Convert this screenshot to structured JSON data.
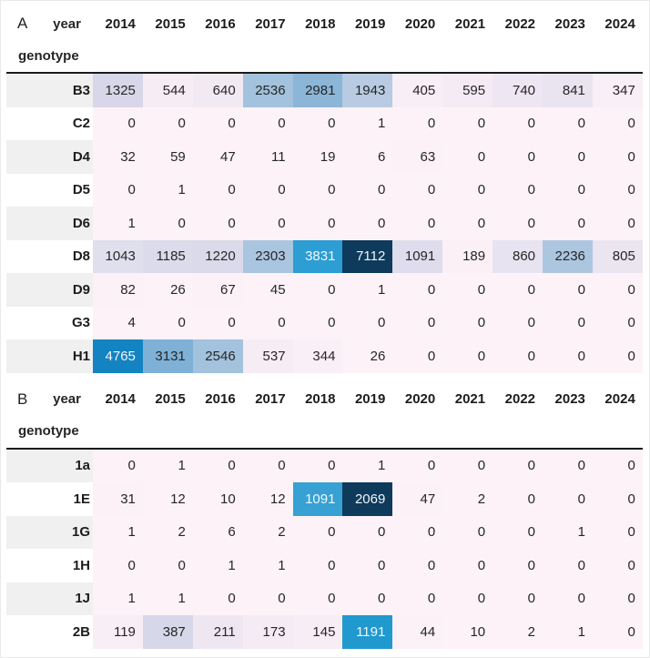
{
  "chart_data": [
    {
      "type": "heatmap",
      "panel_label": "A",
      "columns_name": "year",
      "index_name": "genotype",
      "columns": [
        "2014",
        "2015",
        "2016",
        "2017",
        "2018",
        "2019",
        "2020",
        "2021",
        "2022",
        "2023",
        "2024"
      ],
      "rows": [
        "B3",
        "C2",
        "D4",
        "D5",
        "D6",
        "D8",
        "D9",
        "G3",
        "H1"
      ],
      "values": [
        [
          1325,
          544,
          640,
          2536,
          2981,
          1943,
          405,
          595,
          740,
          841,
          347
        ],
        [
          0,
          0,
          0,
          0,
          0,
          1,
          0,
          0,
          0,
          0,
          0
        ],
        [
          32,
          59,
          47,
          11,
          19,
          6,
          63,
          0,
          0,
          0,
          0
        ],
        [
          0,
          1,
          0,
          0,
          0,
          0,
          0,
          0,
          0,
          0,
          0
        ],
        [
          1,
          0,
          0,
          0,
          0,
          0,
          0,
          0,
          0,
          0,
          0
        ],
        [
          1043,
          1185,
          1220,
          2303,
          3831,
          7112,
          1091,
          189,
          860,
          2236,
          805
        ],
        [
          82,
          26,
          67,
          45,
          0,
          1,
          0,
          0,
          0,
          0,
          0
        ],
        [
          4,
          0,
          0,
          0,
          0,
          0,
          0,
          0,
          0,
          0,
          0
        ],
        [
          4765,
          3131,
          2546,
          537,
          344,
          26,
          0,
          0,
          0,
          0,
          0
        ]
      ],
      "vmin": 0,
      "vmax": 7112,
      "legend": "none",
      "gridlines": false
    },
    {
      "type": "heatmap",
      "panel_label": "B",
      "columns_name": "year",
      "index_name": "genotype",
      "columns": [
        "2014",
        "2015",
        "2016",
        "2017",
        "2018",
        "2019",
        "2020",
        "2021",
        "2022",
        "2023",
        "2024"
      ],
      "rows": [
        "1a",
        "1E",
        "1G",
        "1H",
        "1J",
        "2B"
      ],
      "values": [
        [
          0,
          1,
          0,
          0,
          0,
          1,
          0,
          0,
          0,
          0,
          0
        ],
        [
          31,
          12,
          10,
          12,
          1091,
          2069,
          47,
          2,
          0,
          0,
          0
        ],
        [
          1,
          2,
          6,
          2,
          0,
          0,
          0,
          0,
          0,
          1,
          0
        ],
        [
          0,
          0,
          1,
          1,
          0,
          0,
          0,
          0,
          0,
          0,
          0
        ],
        [
          1,
          1,
          0,
          0,
          0,
          0,
          0,
          0,
          0,
          0,
          0
        ],
        [
          119,
          387,
          211,
          173,
          145,
          1191,
          44,
          10,
          2,
          1,
          0
        ]
      ],
      "vmin": 0,
      "vmax": 2069,
      "legend": "none",
      "gridlines": false
    }
  ],
  "style": {
    "colormap_stops": [
      [
        0.0,
        "#fdf2f7"
      ],
      [
        0.05,
        "#f9eff6"
      ],
      [
        0.08,
        "#f5ecf4"
      ],
      [
        0.11,
        "#ece5f1"
      ],
      [
        0.14,
        "#e2e0ee"
      ],
      [
        0.17,
        "#dbdaeb"
      ],
      [
        0.2,
        "#d3d4e8"
      ],
      [
        0.24,
        "#c3cde4"
      ],
      [
        0.28,
        "#b6cae2"
      ],
      [
        0.33,
        "#a8c4df"
      ],
      [
        0.38,
        "#9dc0dc"
      ],
      [
        0.43,
        "#86b3d7"
      ],
      [
        0.48,
        "#63aad5"
      ],
      [
        0.54,
        "#2b9ed3"
      ],
      [
        0.61,
        "#1695cc"
      ],
      [
        0.68,
        "#1380bf"
      ],
      [
        0.8,
        "#0e5c90"
      ],
      [
        0.9,
        "#0d4875"
      ],
      [
        1.0,
        "#0e3a5b"
      ]
    ],
    "light_text_threshold": 0.5,
    "row_label_stripe": "#f0f0f0",
    "divider_color": "#1a1a1a",
    "text_dark": "#262626",
    "text_light": "#f2f6fa"
  }
}
